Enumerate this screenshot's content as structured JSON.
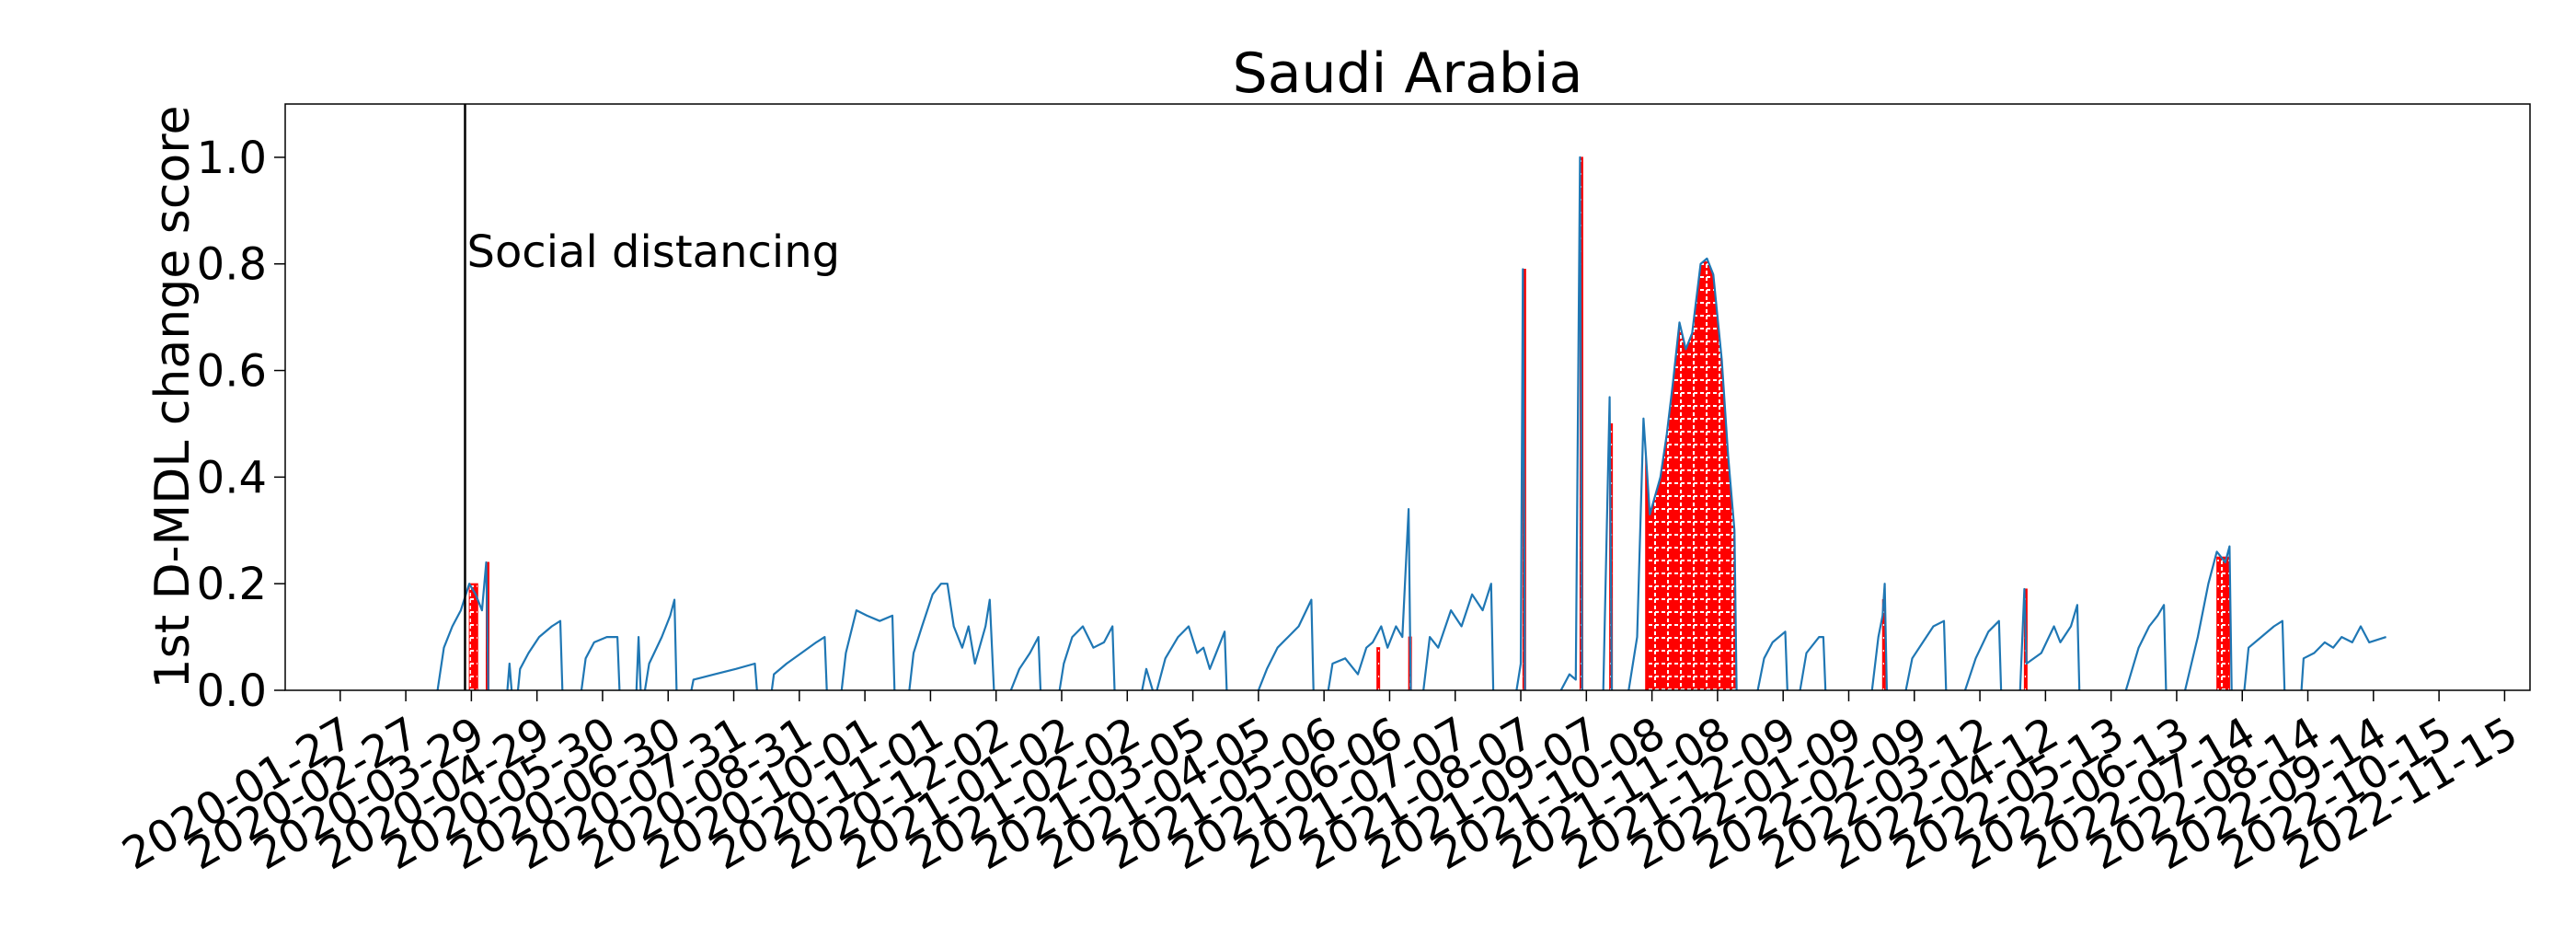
{
  "chart_data": {
    "type": "line",
    "title": "Saudi Arabia",
    "xlabel": "",
    "ylabel": "1st D-MDL change score",
    "ylim": [
      0,
      1.1
    ],
    "yticks": [
      "0.0",
      "0.2",
      "0.4",
      "0.6",
      "0.8",
      "1.0"
    ],
    "xlim": [
      "2020-01-01",
      "2022-11-27"
    ],
    "xticks": [
      "2020-01-27",
      "2020-02-27",
      "2020-03-29",
      "2020-04-29",
      "2020-05-30",
      "2020-06-30",
      "2020-07-31",
      "2020-08-31",
      "2020-10-01",
      "2020-11-01",
      "2020-12-02",
      "2021-01-02",
      "2021-02-02",
      "2021-03-05",
      "2021-04-05",
      "2021-05-06",
      "2021-06-06",
      "2021-07-07",
      "2021-08-07",
      "2021-09-07",
      "2021-10-08",
      "2021-11-08",
      "2021-12-09",
      "2022-01-09",
      "2022-02-09",
      "2022-03-12",
      "2022-04-12",
      "2022-05-13",
      "2022-06-13",
      "2022-07-14",
      "2022-08-14",
      "2022-09-14",
      "2022-10-15",
      "2022-11-15"
    ],
    "grid": false,
    "colors": {
      "line": "#1f77b4",
      "alarm_fill": "#ff0000",
      "alarm_hatch": "#ffffff",
      "annotation": "#000000"
    },
    "annotations": [
      {
        "date": "2020-03-26",
        "text": "Social distancing"
      }
    ],
    "series": [
      {
        "segments": [
          [
            [
              "2020-03-13",
              0
            ],
            [
              "2020-03-16",
              0.08
            ],
            [
              "2020-03-20",
              0.12
            ],
            [
              "2020-03-24",
              0.15
            ],
            [
              "2020-03-28",
              0.2
            ],
            [
              "2020-03-31",
              0.18
            ],
            [
              "2020-04-03",
              0.15
            ],
            [
              "2020-04-05",
              0.24
            ],
            [
              "2020-04-06",
              0.0
            ]
          ],
          [
            [
              "2020-04-15",
              0
            ],
            [
              "2020-04-16",
              0.05
            ],
            [
              "2020-04-17",
              0.0
            ]
          ],
          [
            [
              "2020-04-20",
              0
            ],
            [
              "2020-04-21",
              0.04
            ],
            [
              "2020-04-25",
              0.07
            ],
            [
              "2020-04-30",
              0.1
            ],
            [
              "2020-05-06",
              0.12
            ],
            [
              "2020-05-10",
              0.13
            ],
            [
              "2020-05-11",
              0.0
            ]
          ],
          [
            [
              "2020-05-20",
              0
            ],
            [
              "2020-05-22",
              0.06
            ],
            [
              "2020-05-26",
              0.09
            ],
            [
              "2020-06-01",
              0.1
            ],
            [
              "2020-06-06",
              0.1
            ],
            [
              "2020-06-07",
              0.0
            ]
          ],
          [
            [
              "2020-06-15",
              0
            ],
            [
              "2020-06-16",
              0.1
            ],
            [
              "2020-06-17",
              0.0
            ]
          ],
          [
            [
              "2020-06-19",
              0
            ],
            [
              "2020-06-21",
              0.05
            ],
            [
              "2020-06-27",
              0.1
            ],
            [
              "2020-07-01",
              0.14
            ],
            [
              "2020-07-03",
              0.17
            ],
            [
              "2020-07-04",
              0.0
            ]
          ],
          [
            [
              "2020-07-11",
              0
            ],
            [
              "2020-07-12",
              0.02
            ],
            [
              "2020-07-22",
              0.03
            ],
            [
              "2020-08-01",
              0.04
            ],
            [
              "2020-08-10",
              0.05
            ],
            [
              "2020-08-11",
              0.0
            ]
          ],
          [
            [
              "2020-08-18",
              0
            ],
            [
              "2020-08-19",
              0.03
            ],
            [
              "2020-08-25",
              0.05
            ],
            [
              "2020-09-01",
              0.07
            ],
            [
              "2020-09-08",
              0.09
            ],
            [
              "2020-09-12",
              0.1
            ],
            [
              "2020-09-13",
              0.0
            ]
          ],
          [
            [
              "2020-09-20",
              0
            ],
            [
              "2020-09-22",
              0.07
            ],
            [
              "2020-09-27",
              0.15
            ],
            [
              "2020-10-02",
              0.14
            ],
            [
              "2020-10-08",
              0.13
            ],
            [
              "2020-10-14",
              0.14
            ],
            [
              "2020-10-15",
              0.0
            ]
          ],
          [
            [
              "2020-10-22",
              0
            ],
            [
              "2020-10-24",
              0.07
            ],
            [
              "2020-10-28",
              0.12
            ],
            [
              "2020-11-02",
              0.18
            ],
            [
              "2020-11-06",
              0.2
            ],
            [
              "2020-11-09",
              0.2
            ],
            [
              "2020-11-12",
              0.12
            ],
            [
              "2020-11-16",
              0.08
            ],
            [
              "2020-11-19",
              0.12
            ],
            [
              "2020-11-22",
              0.05
            ],
            [
              "2020-11-27",
              0.12
            ],
            [
              "2020-11-29",
              0.17
            ],
            [
              "2020-12-01",
              0.0
            ]
          ],
          [
            [
              "2020-12-09",
              0
            ],
            [
              "2020-12-13",
              0.04
            ],
            [
              "2020-12-18",
              0.07
            ],
            [
              "2020-12-22",
              0.1
            ],
            [
              "2020-12-23",
              0.0
            ]
          ],
          [
            [
              "2021-01-01",
              0
            ],
            [
              "2021-01-03",
              0.05
            ],
            [
              "2021-01-07",
              0.1
            ],
            [
              "2021-01-12",
              0.12
            ],
            [
              "2021-01-17",
              0.08
            ],
            [
              "2021-01-22",
              0.09
            ],
            [
              "2021-01-26",
              0.12
            ],
            [
              "2021-01-27",
              0.0
            ]
          ],
          [
            [
              "2021-02-09",
              0
            ],
            [
              "2021-02-11",
              0.04
            ],
            [
              "2021-02-14",
              0.0
            ]
          ],
          [
            [
              "2021-02-16",
              0
            ],
            [
              "2021-02-20",
              0.06
            ],
            [
              "2021-02-26",
              0.1
            ],
            [
              "2021-03-03",
              0.12
            ],
            [
              "2021-03-07",
              0.07
            ],
            [
              "2021-03-10",
              0.08
            ],
            [
              "2021-03-13",
              0.04
            ],
            [
              "2021-03-17",
              0.08
            ],
            [
              "2021-03-20",
              0.11
            ],
            [
              "2021-03-21",
              0.0
            ]
          ],
          [
            [
              "2021-04-05",
              0
            ],
            [
              "2021-04-09",
              0.04
            ],
            [
              "2021-04-14",
              0.08
            ],
            [
              "2021-04-19",
              0.1
            ],
            [
              "2021-04-24",
              0.12
            ],
            [
              "2021-04-30",
              0.17
            ],
            [
              "2021-05-01",
              0.0
            ]
          ],
          [
            [
              "2021-05-08",
              0
            ],
            [
              "2021-05-10",
              0.05
            ],
            [
              "2021-05-16",
              0.06
            ],
            [
              "2021-05-22",
              0.03
            ],
            [
              "2021-05-26",
              0.08
            ],
            [
              "2021-05-29",
              0.09
            ],
            [
              "2021-06-02",
              0.12
            ],
            [
              "2021-06-05",
              0.08
            ],
            [
              "2021-06-09",
              0.12
            ],
            [
              "2021-06-12",
              0.1
            ],
            [
              "2021-06-15",
              0.34
            ],
            [
              "2021-06-16",
              0.0
            ]
          ],
          [
            [
              "2021-06-22",
              0
            ],
            [
              "2021-06-25",
              0.1
            ],
            [
              "2021-06-29",
              0.08
            ],
            [
              "2021-07-05",
              0.15
            ],
            [
              "2021-07-10",
              0.12
            ],
            [
              "2021-07-15",
              0.18
            ],
            [
              "2021-07-20",
              0.15
            ],
            [
              "2021-07-24",
              0.2
            ],
            [
              "2021-07-25",
              0.0
            ]
          ],
          [
            [
              "2021-08-05",
              0
            ],
            [
              "2021-08-07",
              0.05
            ],
            [
              "2021-08-08",
              0.79
            ],
            [
              "2021-08-09",
              0.0
            ]
          ],
          [
            [
              "2021-08-26",
              0
            ],
            [
              "2021-08-30",
              0.03
            ],
            [
              "2021-09-02",
              0.02
            ],
            [
              "2021-09-04",
              1.0
            ],
            [
              "2021-09-05",
              0.0
            ]
          ],
          [
            [
              "2021-09-15",
              0
            ],
            [
              "2021-09-18",
              0.55
            ],
            [
              "2021-09-19",
              0.0
            ]
          ],
          [
            [
              "2021-09-27",
              0
            ],
            [
              "2021-10-01",
              0.1
            ],
            [
              "2021-10-04",
              0.51
            ],
            [
              "2021-10-07",
              0.33
            ],
            [
              "2021-10-12",
              0.4
            ],
            [
              "2021-10-15",
              0.48
            ],
            [
              "2021-10-18",
              0.58
            ],
            [
              "2021-10-21",
              0.69
            ],
            [
              "2021-10-24",
              0.64
            ],
            [
              "2021-10-27",
              0.67
            ],
            [
              "2021-10-31",
              0.8
            ],
            [
              "2021-11-03",
              0.81
            ],
            [
              "2021-11-06",
              0.78
            ],
            [
              "2021-11-10",
              0.62
            ],
            [
              "2021-11-13",
              0.44
            ],
            [
              "2021-11-16",
              0.3
            ],
            [
              "2021-11-17",
              0.0
            ]
          ],
          [
            [
              "2021-11-27",
              0
            ],
            [
              "2021-11-30",
              0.06
            ],
            [
              "2021-12-04",
              0.09
            ],
            [
              "2021-12-10",
              0.11
            ],
            [
              "2021-12-11",
              0.0
            ]
          ],
          [
            [
              "2021-12-17",
              0
            ],
            [
              "2021-12-20",
              0.07
            ],
            [
              "2021-12-26",
              0.1
            ],
            [
              "2021-12-28",
              0.1
            ],
            [
              "2021-12-29",
              0.0
            ]
          ],
          [
            [
              "2022-01-20",
              0
            ],
            [
              "2022-01-23",
              0.1
            ],
            [
              "2022-01-25",
              0.14
            ],
            [
              "2022-01-26",
              0.2
            ],
            [
              "2022-01-27",
              0.0
            ]
          ],
          [
            [
              "2022-02-05",
              0
            ],
            [
              "2022-02-08",
              0.06
            ],
            [
              "2022-02-13",
              0.09
            ],
            [
              "2022-02-18",
              0.12
            ],
            [
              "2022-02-23",
              0.13
            ],
            [
              "2022-02-24",
              0.0
            ]
          ],
          [
            [
              "2022-03-05",
              0
            ],
            [
              "2022-03-10",
              0.06
            ],
            [
              "2022-03-16",
              0.11
            ],
            [
              "2022-03-21",
              0.13
            ],
            [
              "2022-03-22",
              0.0
            ]
          ],
          [
            [
              "2022-03-31",
              0
            ],
            [
              "2022-04-02",
              0.19
            ],
            [
              "2022-04-03",
              0.05
            ],
            [
              "2022-04-10",
              0.07
            ],
            [
              "2022-04-16",
              0.12
            ],
            [
              "2022-04-19",
              0.09
            ],
            [
              "2022-04-24",
              0.12
            ],
            [
              "2022-04-27",
              0.16
            ],
            [
              "2022-04-28",
              0.0
            ]
          ],
          [
            [
              "2022-05-20",
              0
            ],
            [
              "2022-05-23",
              0.04
            ],
            [
              "2022-05-26",
              0.08
            ],
            [
              "2022-05-31",
              0.12
            ],
            [
              "2022-06-04",
              0.14
            ],
            [
              "2022-06-07",
              0.16
            ],
            [
              "2022-06-08",
              0.0
            ]
          ],
          [
            [
              "2022-06-17",
              0
            ],
            [
              "2022-06-20",
              0.05
            ],
            [
              "2022-06-23",
              0.1
            ],
            [
              "2022-06-28",
              0.2
            ],
            [
              "2022-07-02",
              0.26
            ],
            [
              "2022-07-04",
              0.25
            ],
            [
              "2022-07-06",
              0.24
            ],
            [
              "2022-07-08",
              0.27
            ],
            [
              "2022-07-09",
              0.0
            ]
          ],
          [
            [
              "2022-07-15",
              0
            ],
            [
              "2022-07-17",
              0.08
            ],
            [
              "2022-07-23",
              0.1
            ],
            [
              "2022-07-29",
              0.12
            ],
            [
              "2022-08-02",
              0.13
            ],
            [
              "2022-08-03",
              0.0
            ]
          ],
          [
            [
              "2022-08-11",
              0
            ],
            [
              "2022-08-12",
              0.06
            ],
            [
              "2022-08-17",
              0.07
            ],
            [
              "2022-08-22",
              0.09
            ],
            [
              "2022-08-26",
              0.08
            ],
            [
              "2022-08-30",
              0.1
            ],
            [
              "2022-09-04",
              0.09
            ],
            [
              "2022-09-08",
              0.12
            ],
            [
              "2022-09-12",
              0.09
            ],
            [
              "2022-09-20",
              0.1
            ]
          ]
        ]
      }
    ],
    "alarm_regions": [
      {
        "start": "2020-03-28",
        "end": "2020-04-01",
        "value": 0.2
      },
      {
        "start": "2020-04-05",
        "end": "2020-04-06",
        "value": 0.24
      },
      {
        "start": "2021-05-31",
        "end": "2021-06-01",
        "value": 0.08
      },
      {
        "start": "2021-06-15",
        "end": "2021-06-16",
        "value": 0.1
      },
      {
        "start": "2021-08-08",
        "end": "2021-08-09",
        "value": 0.79
      },
      {
        "start": "2021-09-04",
        "end": "2021-09-05",
        "value": 1.0
      },
      {
        "start": "2021-09-18",
        "end": "2021-09-19",
        "value": 0.5
      },
      {
        "start": "2021-10-05",
        "end": "2021-11-17",
        "value": null
      },
      {
        "start": "2022-01-25",
        "end": "2022-01-26",
        "value": 0.17
      },
      {
        "start": "2022-04-02",
        "end": "2022-04-03",
        "value": 0.19
      },
      {
        "start": "2022-07-02",
        "end": "2022-07-08",
        "value": 0.25
      }
    ]
  }
}
